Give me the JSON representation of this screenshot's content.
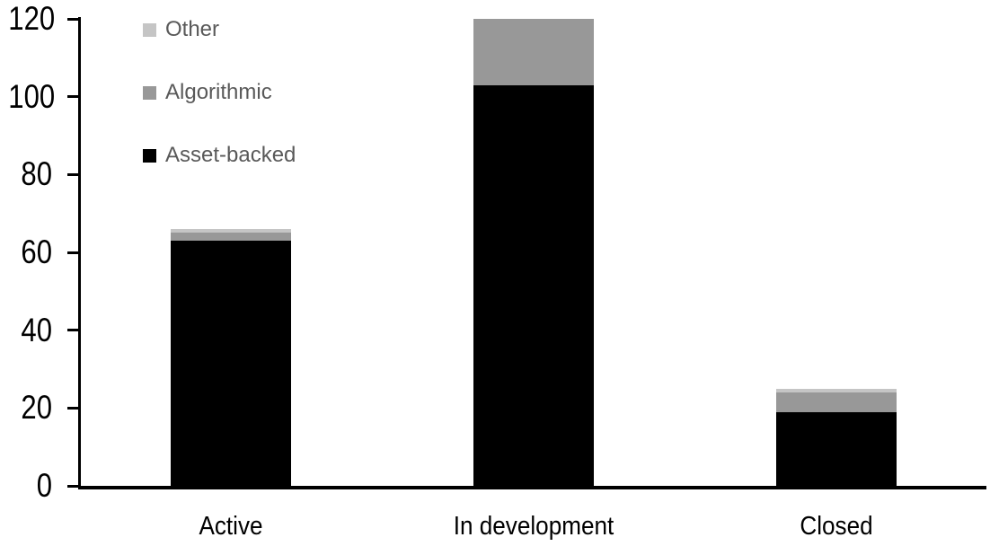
{
  "chart_data": {
    "type": "bar",
    "stacked": true,
    "title": "",
    "xlabel": "",
    "ylabel": "",
    "categories": [
      "Active",
      "In development",
      "Closed"
    ],
    "series": [
      {
        "name": "Asset-backed",
        "color": "#000000",
        "values": [
          63,
          103,
          19
        ]
      },
      {
        "name": "Algorithmic",
        "color": "#989898",
        "values": [
          2,
          17,
          5
        ]
      },
      {
        "name": "Other",
        "color": "#c5c5c5",
        "values": [
          1,
          0,
          1
        ]
      }
    ],
    "ylim": [
      0,
      120
    ],
    "yticks": [
      0,
      20,
      40,
      60,
      80,
      100,
      120
    ],
    "grid": false,
    "legend_position": "top-left"
  },
  "legend": {
    "items": [
      {
        "label": "Other",
        "color": "#c5c5c5"
      },
      {
        "label": "Algorithmic",
        "color": "#989898"
      },
      {
        "label": "Asset-backed",
        "color": "#000000"
      }
    ]
  },
  "style_colors": {
    "axis": "#000000",
    "tick_label": "#000000",
    "legend_text": "#595959",
    "background": "#ffffff"
  }
}
